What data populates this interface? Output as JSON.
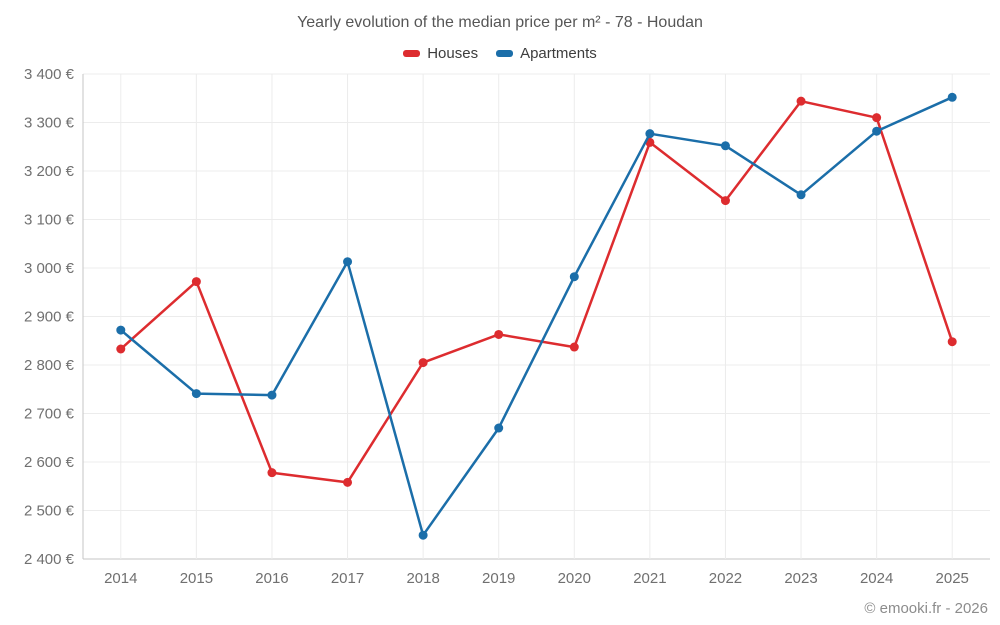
{
  "title": "Yearly evolution of the median price per m² - 78 - Houdan",
  "watermark": "© emooki.fr - 2026",
  "legend": [
    {
      "label": "Houses",
      "color": "#dd2c2f"
    },
    {
      "label": "Apartments",
      "color": "#1b6ea9"
    }
  ],
  "colors": {
    "houses": "#dd2c2f",
    "apartments": "#1b6ea9",
    "gridline": "#ececec",
    "axis_line": "#c6c6c6",
    "tick_text": "#707070"
  },
  "chart_data": {
    "type": "line",
    "title": "Yearly evolution of the median price per m² - 78 - Houdan",
    "categories": [
      "2014",
      "2015",
      "2016",
      "2017",
      "2018",
      "2019",
      "2020",
      "2021",
      "2022",
      "2023",
      "2024",
      "2025"
    ],
    "series": [
      {
        "name": "Houses",
        "color": "#dd2c2f",
        "values": [
          2833,
          2972,
          2578,
          2558,
          2805,
          2863,
          2837,
          3259,
          3139,
          3344,
          3310,
          2848
        ]
      },
      {
        "name": "Apartments",
        "color": "#1b6ea9",
        "values": [
          2872,
          2741,
          2738,
          3013,
          2449,
          2670,
          2982,
          3277,
          3252,
          3151,
          3282,
          3352
        ]
      }
    ],
    "xlabel": "",
    "ylabel": "",
    "ylim": [
      2400,
      3400
    ],
    "ytick_step": 100,
    "ytick_values": [
      2400,
      2500,
      2600,
      2700,
      2800,
      2900,
      3000,
      3100,
      3200,
      3300,
      3400
    ],
    "ytick_labels": [
      "2 400 €",
      "2 500 €",
      "2 600 €",
      "2 700 €",
      "2 800 €",
      "2 900 €",
      "3 000 €",
      "3 100 €",
      "3 200 €",
      "3 300 €",
      "3 400 €"
    ],
    "grid": true,
    "legend_position": "top",
    "marker": "circle"
  }
}
